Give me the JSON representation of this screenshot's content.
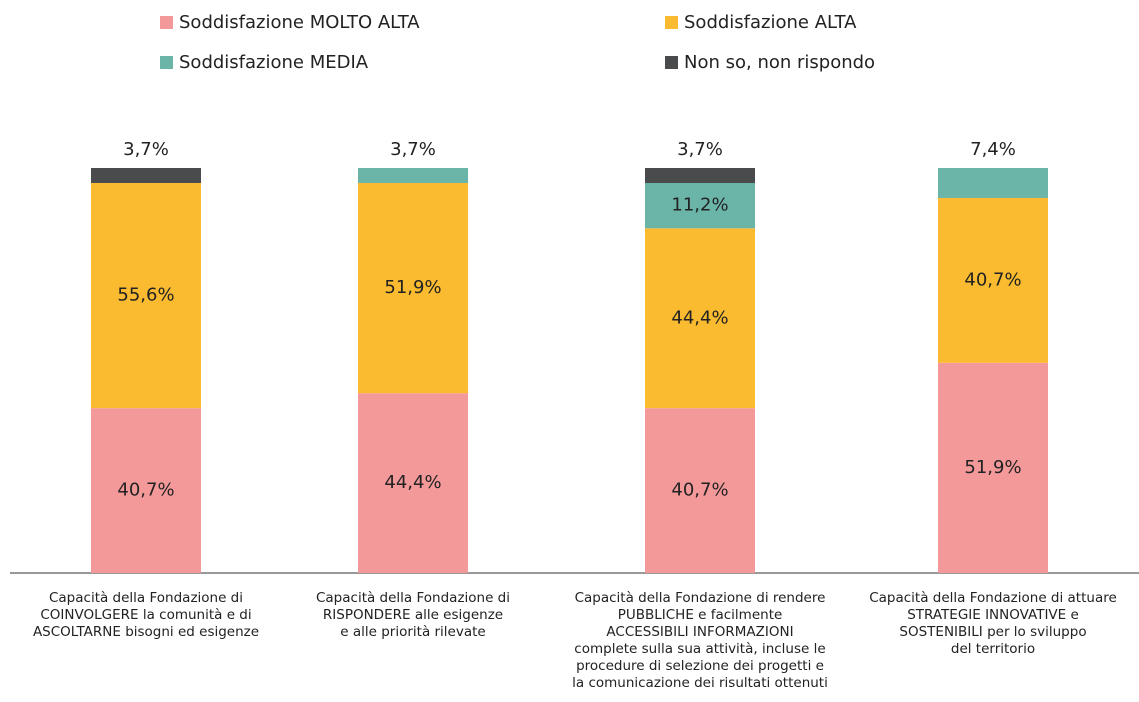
{
  "chart_data": {
    "type": "stacked_bar",
    "categories": [
      "Capacità della Fondazione di\nCOINVOLGERE la comunità e di\nASCOLTARNE bisogni ed esigenze",
      "Capacità della Fondazione di\nRISPONDERE alle esigenze\ne alle priorità rilevate",
      "Capacità della Fondazione di rendere\nPUBBLICHE e facilmente\nACCESSIBILI INFORMAZIONI\ncomplete sulla sua attività, incluse le\nprocedure di selezione dei progetti e\nla comunicazione dei risultati ottenuti",
      "Capacità della Fondazione di attuare\nSTRATEGIE INNOVATIVE e\nSOSTENIBILI per lo sviluppo\ndel territorio"
    ],
    "series": [
      {
        "name": "Soddisfazione MOLTO ALTA",
        "color": "#f4999a",
        "values": [
          40.7,
          44.4,
          40.7,
          51.9
        ],
        "value_labels": [
          "40,7%",
          "44,4%",
          "40,7%",
          "51,9%"
        ]
      },
      {
        "name": "Soddisfazione ALTA",
        "color": "#fbbb30",
        "values": [
          55.6,
          51.9,
          44.4,
          40.7
        ],
        "value_labels": [
          "55,6%",
          "51,9%",
          "44,4%",
          "40,7%"
        ]
      },
      {
        "name": "Soddisfazione MEDIA",
        "color": "#6bb5a8",
        "values": [
          null,
          3.7,
          11.2,
          7.4
        ],
        "value_labels": [
          null,
          "3,7%",
          "11,2%",
          "7,4%"
        ]
      },
      {
        "name": "Non so, non rispondo",
        "color": "#4a4b4d",
        "values": [
          3.7,
          null,
          3.7,
          null
        ],
        "value_labels": [
          "3,7%",
          null,
          "3,7%",
          null
        ]
      }
    ],
    "ylim": [
      0,
      100
    ]
  }
}
